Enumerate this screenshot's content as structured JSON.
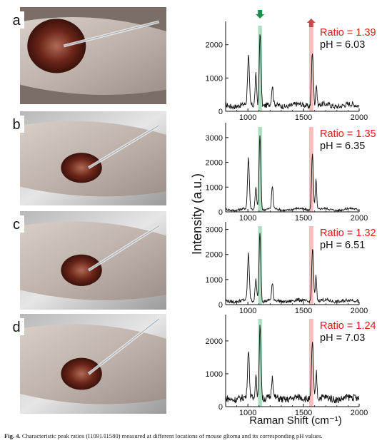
{
  "caption": {
    "figure_number": "Fig. 4.",
    "text": "Characteristic peak ratios (I1091/I1580) measured at different locations of mouse glioma and its corresponding pH values."
  },
  "photos": [
    {
      "label": "a",
      "description": "surgical-photo-a"
    },
    {
      "label": "b",
      "description": "surgical-photo-b"
    },
    {
      "label": "c",
      "description": "surgical-photo-c"
    },
    {
      "label": "d",
      "description": "surgical-photo-d"
    }
  ],
  "colors": {
    "green_band": "#8fd3a8",
    "red_band": "#f6a8a8",
    "ratio_text": "#d42020",
    "ph_text": "#111111",
    "green_arrow": "#1f8f4a",
    "red_arrow": "#c74a4a"
  },
  "chart_data": {
    "type": "line",
    "xlabel": "Raman Shift (cm⁻¹)",
    "ylabel": "Intensity (a.u.)",
    "xlim": [
      800,
      2000
    ],
    "x_ticks": [
      1000,
      1500,
      2000
    ],
    "highlight_bands": [
      {
        "name": "green",
        "range": [
          1092,
          1126
        ]
      },
      {
        "name": "red",
        "range": [
          1550,
          1588
        ]
      }
    ],
    "panels": [
      {
        "label": "a",
        "ratio_text": "Ratio = 1.39",
        "ph_text": "pH = 6.03",
        "ylim": [
          0,
          2700
        ],
        "y_ticks": [
          0,
          1000,
          2000
        ],
        "baseline": 180,
        "peaks": [
          [
            1005,
            1450,
            8
          ],
          [
            1072,
            950,
            7
          ],
          [
            1110,
            2250,
            8
          ],
          [
            1220,
            550,
            7
          ],
          [
            1580,
            1650,
            8
          ],
          [
            1615,
            650,
            6
          ]
        ],
        "arrows": true
      },
      {
        "label": "b",
        "ratio_text": "Ratio = 1.35",
        "ph_text": "pH = 6.35",
        "ylim": [
          0,
          3600
        ],
        "y_ticks": [
          0,
          1000,
          2000,
          3000
        ],
        "baseline": 100,
        "peaks": [
          [
            1005,
            2050,
            8
          ],
          [
            1072,
            900,
            7
          ],
          [
            1108,
            3050,
            8
          ],
          [
            1220,
            900,
            7
          ],
          [
            1580,
            2250,
            8
          ],
          [
            1612,
            1250,
            6
          ]
        ],
        "arrows": false
      },
      {
        "label": "c",
        "ratio_text": "Ratio = 1.32",
        "ph_text": "pH = 6.51",
        "ylim": [
          0,
          3300
        ],
        "y_ticks": [
          0,
          1000,
          2000,
          3000
        ],
        "baseline": 150,
        "peaks": [
          [
            1005,
            1850,
            8
          ],
          [
            1072,
            900,
            7
          ],
          [
            1108,
            2800,
            8
          ],
          [
            1220,
            650,
            7
          ],
          [
            1582,
            2150,
            8
          ],
          [
            1612,
            1000,
            6
          ]
        ],
        "arrows": false
      },
      {
        "label": "d",
        "ratio_text": "Ratio = 1.24",
        "ph_text": "pH = 7.03",
        "ylim": [
          0,
          2800
        ],
        "y_ticks": [
          0,
          1000,
          2000
        ],
        "baseline": 250,
        "peaks": [
          [
            1005,
            1450,
            8
          ],
          [
            1072,
            750,
            7
          ],
          [
            1110,
            2250,
            8
          ],
          [
            1220,
            650,
            7
          ],
          [
            1580,
            1800,
            8
          ],
          [
            1615,
            800,
            6
          ]
        ],
        "arrows": false
      }
    ]
  }
}
